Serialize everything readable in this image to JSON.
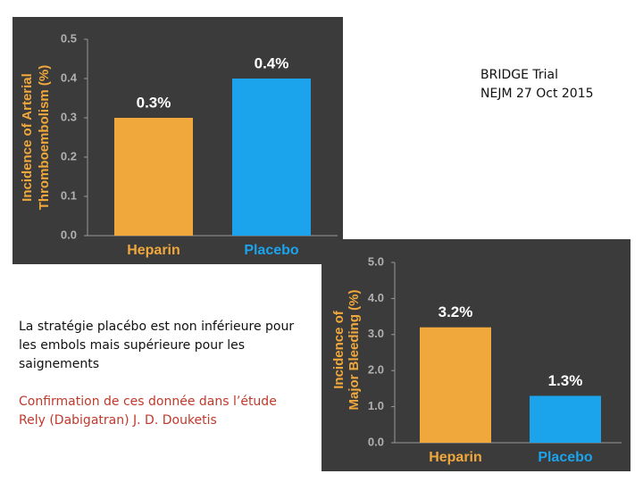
{
  "chart_data": [
    {
      "type": "bar",
      "ylabel": [
        "Incidence of Arterial",
        "Thromboembolism (%)"
      ],
      "categories": [
        "Heparin",
        "Placebo"
      ],
      "values": [
        0.3,
        0.4
      ],
      "value_labels": [
        "0.3%",
        "0.4%"
      ],
      "colors": [
        "#f0a83c",
        "#1ba3ec"
      ],
      "ylim": [
        0,
        0.5
      ],
      "yticks": [
        {
          "value": 0,
          "label": "0.0"
        },
        0.1,
        0.2,
        0.3,
        0.4,
        0.5
      ]
    },
    {
      "type": "bar",
      "ylabel": [
        "Incidence of",
        "Major Bleeding (%)"
      ],
      "categories": [
        "Heparin",
        "Placebo"
      ],
      "values": [
        3.2,
        1.3
      ],
      "value_labels": [
        "3.2%",
        "1.3%"
      ],
      "colors": [
        "#f0a83c",
        "#1ba3ec"
      ],
      "ylim": [
        0,
        5
      ],
      "yticks": [
        {
          "value": 0,
          "label": "0.0"
        },
        {
          "value": 1,
          "label": "1.0"
        },
        {
          "value": 2,
          "label": "2.0"
        },
        {
          "value": 3,
          "label": "3.0"
        },
        {
          "value": 4,
          "label": "4.0"
        },
        {
          "value": 5,
          "label": "5.0"
        }
      ]
    }
  ],
  "header": {
    "lines": [
      "BRIDGE Trial",
      "NEJM 27 Oct 2015"
    ]
  },
  "notes": [
    "La stratégie placébo est non inférieure pour les embols mais supérieure pour les saignements",
    "Confirmation de ces donnée dans l’étude Rely (Dabigatran) J. D. Douketis"
  ]
}
